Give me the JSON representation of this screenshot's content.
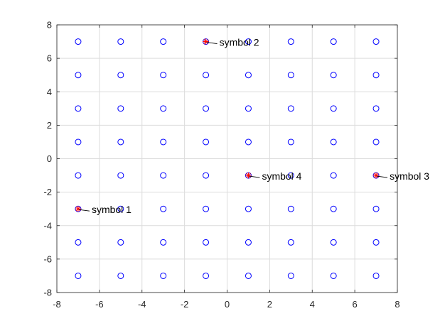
{
  "chart_data": {
    "type": "scatter",
    "title": "",
    "xlabel": "",
    "ylabel": "",
    "xlim": [
      -8,
      8
    ],
    "ylim": [
      -8,
      8
    ],
    "xticks": [
      -8,
      -6,
      -4,
      -2,
      0,
      2,
      4,
      6,
      8
    ],
    "yticks": [
      -8,
      -6,
      -4,
      -2,
      0,
      2,
      4,
      6,
      8
    ],
    "xtick_labels": [
      "-8",
      "-6",
      "-4",
      "-2",
      "0",
      "2",
      "4",
      "6",
      "8"
    ],
    "ytick_labels": [
      "-8",
      "-6",
      "-4",
      "-2",
      "0",
      "2",
      "4",
      "6",
      "8"
    ],
    "grid": true,
    "series": [
      {
        "marker": "circle",
        "color": "#0000ff",
        "x_values": [
          -7,
          -5,
          -3,
          -1,
          1,
          3,
          5,
          7
        ],
        "y_values": [
          -7,
          -5,
          -3,
          -1,
          1,
          3,
          5,
          7
        ]
      },
      {
        "marker": "asterisk",
        "color": "#ff0000",
        "points": [
          {
            "x": -7,
            "y": -3
          },
          {
            "x": -1,
            "y": 7
          },
          {
            "x": 7,
            "y": -1
          },
          {
            "x": 1,
            "y": -1
          }
        ]
      }
    ],
    "annotations": [
      {
        "text": "symbol 1",
        "x": -7,
        "y": -3
      },
      {
        "text": "symbol 2",
        "x": -1,
        "y": 7
      },
      {
        "text": "symbol 3",
        "x": 7,
        "y": -1
      },
      {
        "text": "symbol 4",
        "x": 1,
        "y": -1
      }
    ],
    "colors": {
      "grid": "#dcdcdc",
      "axis": "#262626",
      "circle": "#0000ff",
      "asterisk": "#ff0000",
      "annotation_line": "#000000"
    }
  }
}
